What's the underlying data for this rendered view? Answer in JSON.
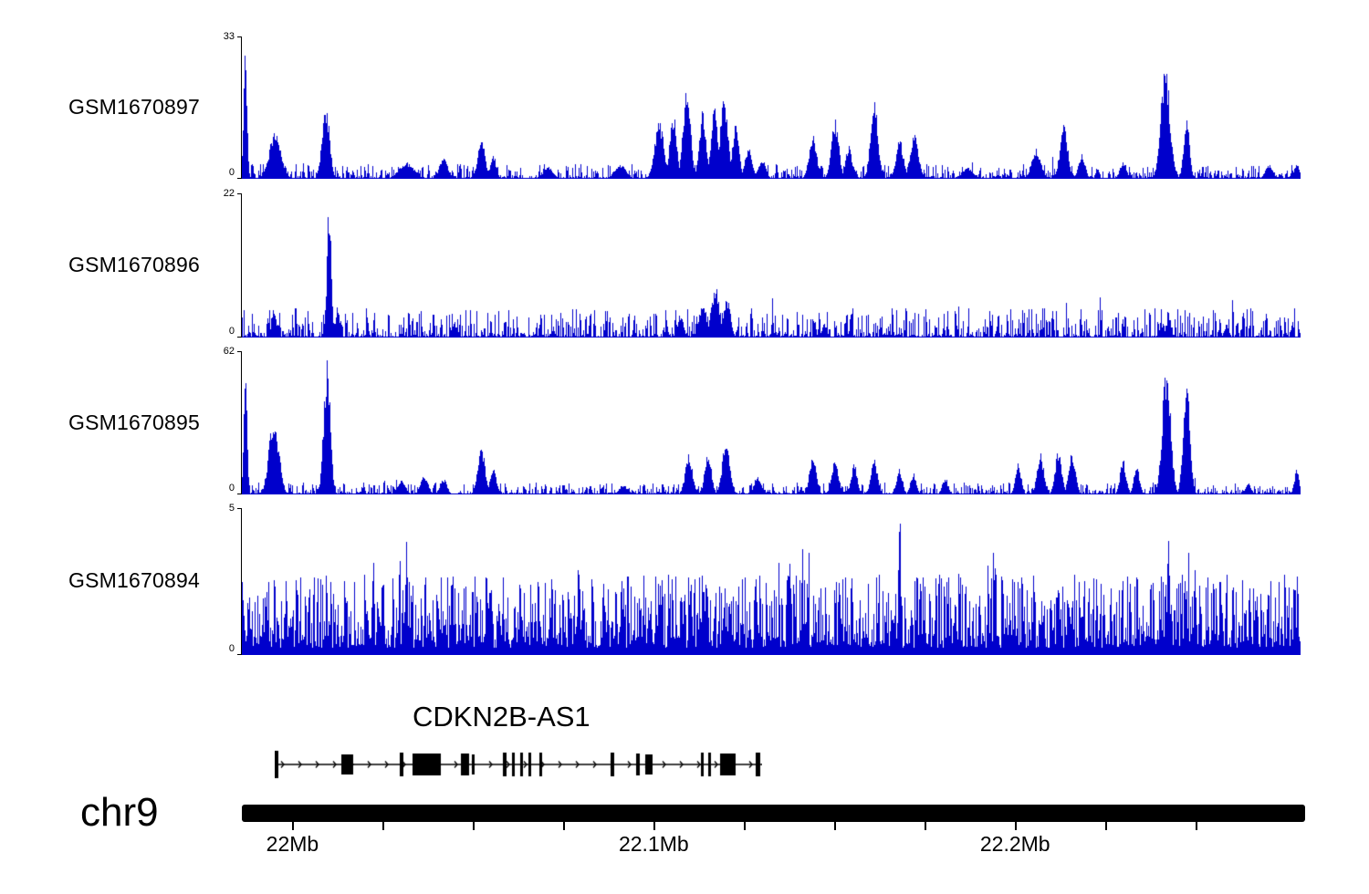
{
  "labels": {
    "chrom": "chr9"
  },
  "chart_data": {
    "type": "area",
    "title": "",
    "legend": "none",
    "grid": false,
    "region": {
      "chrom": "chr9",
      "start_mb": 21.986,
      "end_mb": 22.279
    },
    "signal_color": "#0000cc",
    "y_baseline_label": "0",
    "x_axis": {
      "ticks": [
        {
          "mb": 22.0,
          "label": "22Mb"
        },
        {
          "mb": 22.1,
          "label": "22.1Mb"
        },
        {
          "mb": 22.2,
          "label": "22.2Mb"
        }
      ],
      "minor_ticks_mb": [
        22.0,
        22.025,
        22.05,
        22.075,
        22.1,
        22.125,
        22.15,
        22.175,
        22.2,
        22.225,
        22.25
      ]
    },
    "tracks": [
      {
        "label": "GSM1670897",
        "ymax": 33,
        "ymin": 0,
        "seed": 11,
        "noise": 0.045,
        "peaks": [
          [
            0.003,
            1.0,
            4
          ],
          [
            0.031,
            0.34,
            14
          ],
          [
            0.079,
            0.52,
            9
          ],
          [
            0.155,
            0.12,
            18
          ],
          [
            0.19,
            0.15,
            10
          ],
          [
            0.226,
            0.27,
            9
          ],
          [
            0.237,
            0.18,
            7
          ],
          [
            0.289,
            0.08,
            12
          ],
          [
            0.357,
            0.1,
            14
          ],
          [
            0.394,
            0.42,
            11
          ],
          [
            0.407,
            0.48,
            8
          ],
          [
            0.42,
            0.65,
            9
          ],
          [
            0.435,
            0.5,
            8
          ],
          [
            0.446,
            0.55,
            8
          ],
          [
            0.455,
            0.62,
            9
          ],
          [
            0.466,
            0.4,
            8
          ],
          [
            0.478,
            0.22,
            9
          ],
          [
            0.491,
            0.14,
            9
          ],
          [
            0.539,
            0.32,
            9
          ],
          [
            0.56,
            0.42,
            9
          ],
          [
            0.573,
            0.25,
            7
          ],
          [
            0.597,
            0.55,
            9
          ],
          [
            0.621,
            0.28,
            9
          ],
          [
            0.635,
            0.32,
            10
          ],
          [
            0.685,
            0.08,
            14
          ],
          [
            0.75,
            0.22,
            11
          ],
          [
            0.776,
            0.4,
            9
          ],
          [
            0.793,
            0.18,
            8
          ],
          [
            0.832,
            0.12,
            8
          ],
          [
            0.872,
            0.8,
            11
          ],
          [
            0.892,
            0.42,
            7
          ],
          [
            0.97,
            0.1,
            9
          ],
          [
            0.996,
            0.12,
            6
          ]
        ]
      },
      {
        "label": "GSM1670896",
        "ymax": 22,
        "ymin": 0,
        "seed": 22,
        "noise": 0.09,
        "peaks": [
          [
            0.03,
            0.18,
            6
          ],
          [
            0.082,
            1.0,
            5
          ],
          [
            0.09,
            0.22,
            5
          ],
          [
            0.2,
            0.1,
            6
          ],
          [
            0.414,
            0.16,
            7
          ],
          [
            0.435,
            0.25,
            9
          ],
          [
            0.447,
            0.36,
            10
          ],
          [
            0.458,
            0.28,
            8
          ],
          [
            0.55,
            0.1,
            6
          ],
          [
            0.875,
            0.14,
            6
          ],
          [
            0.93,
            0.1,
            5
          ]
        ]
      },
      {
        "label": "GSM1670895",
        "ymax": 62,
        "ymin": 0,
        "seed": 33,
        "noise": 0.035,
        "peaks": [
          [
            0.003,
            0.95,
            4
          ],
          [
            0.03,
            0.55,
            12
          ],
          [
            0.08,
            0.95,
            8
          ],
          [
            0.15,
            0.1,
            10
          ],
          [
            0.172,
            0.14,
            9
          ],
          [
            0.19,
            0.12,
            8
          ],
          [
            0.226,
            0.33,
            9
          ],
          [
            0.237,
            0.2,
            7
          ],
          [
            0.36,
            0.07,
            10
          ],
          [
            0.422,
            0.28,
            9
          ],
          [
            0.44,
            0.3,
            8
          ],
          [
            0.457,
            0.38,
            9
          ],
          [
            0.487,
            0.14,
            8
          ],
          [
            0.539,
            0.28,
            8
          ],
          [
            0.56,
            0.25,
            8
          ],
          [
            0.578,
            0.22,
            7
          ],
          [
            0.597,
            0.25,
            8
          ],
          [
            0.621,
            0.18,
            7
          ],
          [
            0.634,
            0.15,
            7
          ],
          [
            0.664,
            0.12,
            7
          ],
          [
            0.733,
            0.22,
            7
          ],
          [
            0.754,
            0.3,
            8
          ],
          [
            0.771,
            0.32,
            8
          ],
          [
            0.784,
            0.3,
            8
          ],
          [
            0.832,
            0.25,
            7
          ],
          [
            0.845,
            0.2,
            7
          ],
          [
            0.873,
            0.92,
            10
          ],
          [
            0.892,
            0.8,
            8
          ],
          [
            0.95,
            0.08,
            7
          ],
          [
            0.996,
            0.18,
            6
          ]
        ]
      },
      {
        "label": "GSM1670894",
        "ymax": 5,
        "ymin": 0,
        "seed": 44,
        "noise": 0.06,
        "dense": true,
        "peaks": [
          [
            0.155,
            0.78,
            3
          ],
          [
            0.318,
            0.72,
            3
          ],
          [
            0.517,
            0.7,
            3
          ],
          [
            0.621,
            1.0,
            3
          ],
          [
            0.711,
            0.68,
            3
          ],
          [
            0.875,
            0.93,
            3
          ],
          [
            0.9,
            0.7,
            3
          ]
        ]
      }
    ],
    "gene": {
      "name": "CDKN2B-AS1",
      "start_mb": 21.995,
      "end_mb": 22.13,
      "strand": "+",
      "exons": [
        [
          0.0,
          4,
          30
        ],
        [
          0.136,
          13,
          22
        ],
        [
          0.257,
          4,
          26
        ],
        [
          0.283,
          31,
          24
        ],
        [
          0.382,
          9,
          24
        ],
        [
          0.404,
          3,
          22
        ],
        [
          0.469,
          4,
          26
        ],
        [
          0.486,
          3,
          26
        ],
        [
          0.503,
          3,
          26
        ],
        [
          0.52,
          3,
          26
        ],
        [
          0.544,
          3,
          26
        ],
        [
          0.689,
          4,
          26
        ],
        [
          0.741,
          4,
          24
        ],
        [
          0.76,
          8,
          22
        ],
        [
          0.875,
          3,
          26
        ],
        [
          0.89,
          3,
          26
        ],
        [
          0.913,
          17,
          24
        ],
        [
          0.987,
          5,
          26
        ]
      ]
    }
  }
}
